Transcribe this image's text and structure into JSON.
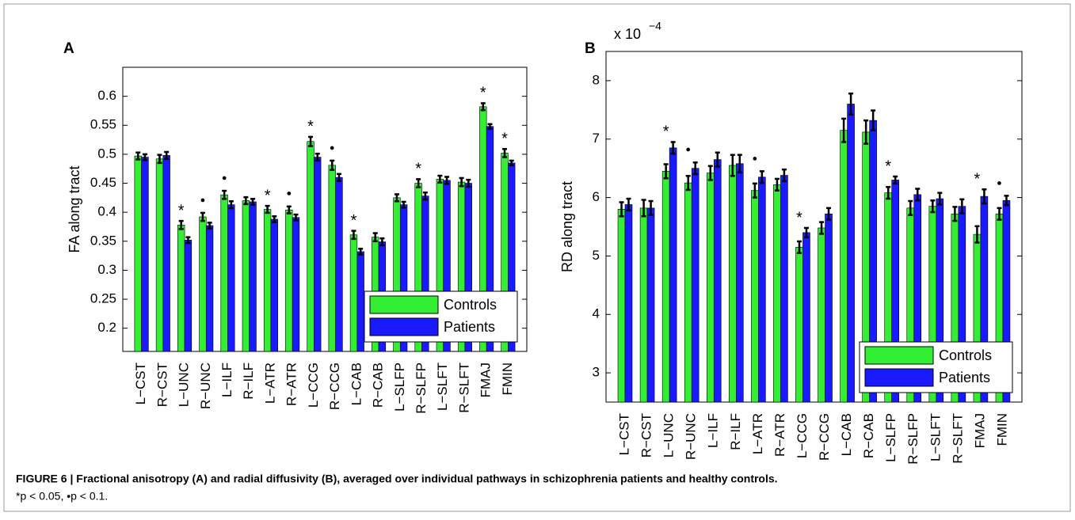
{
  "chart_data": [
    {
      "type": "bar",
      "panel": "A",
      "ylabel": "FA along tract",
      "categories": [
        "L−CST",
        "R−CST",
        "L−UNC",
        "R−UNC",
        "L−ILF",
        "R−ILF",
        "L−ATR",
        "R−ATR",
        "L−CCG",
        "R−CCG",
        "L−CAB",
        "R−CAB",
        "L−SLFP",
        "R−SLFP",
        "L−SLFT",
        "R−SLFT",
        "FMAJ",
        "FMIN"
      ],
      "series": [
        {
          "name": "Controls",
          "color": "#33ee33",
          "values": [
            0.497,
            0.492,
            0.378,
            0.392,
            0.43,
            0.42,
            0.405,
            0.404,
            0.522,
            0.481,
            0.361,
            0.357,
            0.425,
            0.45,
            0.457,
            0.452,
            0.582,
            0.502
          ],
          "errors": [
            0.006,
            0.007,
            0.007,
            0.007,
            0.007,
            0.006,
            0.006,
            0.006,
            0.008,
            0.008,
            0.007,
            0.007,
            0.006,
            0.007,
            0.006,
            0.007,
            0.006,
            0.007
          ]
        },
        {
          "name": "Patients",
          "color": "#1a1aff",
          "values": [
            0.495,
            0.498,
            0.352,
            0.377,
            0.413,
            0.418,
            0.388,
            0.391,
            0.495,
            0.46,
            0.332,
            0.349,
            0.413,
            0.428,
            0.455,
            0.45,
            0.548,
            0.485
          ],
          "errors": [
            0.005,
            0.006,
            0.005,
            0.005,
            0.006,
            0.005,
            0.005,
            0.005,
            0.006,
            0.006,
            0.005,
            0.006,
            0.005,
            0.006,
            0.006,
            0.006,
            0.004,
            0.004
          ]
        }
      ],
      "markers": [
        null,
        null,
        "*",
        "●",
        "●",
        null,
        "*",
        "●",
        "*",
        "●",
        "*",
        null,
        null,
        "*",
        null,
        null,
        "*",
        "*"
      ],
      "ylim": [
        0.16,
        0.65
      ],
      "yticks": [
        0.2,
        0.25,
        0.3,
        0.35,
        0.4,
        0.45,
        0.5,
        0.55,
        0.6
      ],
      "legend": "lower right"
    },
    {
      "type": "bar",
      "panel": "B",
      "ylabel": "RD along tract",
      "scale_label": "x 10",
      "scale_exponent": "−4",
      "categories": [
        "L−CST",
        "R−CST",
        "L−UNC",
        "R−UNC",
        "L−ILF",
        "R−ILF",
        "L−ATR",
        "R−ATR",
        "L−CCG",
        "R−CCG",
        "L−CAB",
        "R−CAB",
        "L−SLFP",
        "R−SLFP",
        "L−SLFT",
        "R−SLFT",
        "FMAJ",
        "FMIN"
      ],
      "series": [
        {
          "name": "Controls",
          "color": "#33ee33",
          "values": [
            5.8,
            5.82,
            6.45,
            6.25,
            6.42,
            6.55,
            6.12,
            6.22,
            5.15,
            5.48,
            7.15,
            7.12,
            6.08,
            5.82,
            5.85,
            5.72,
            5.37,
            5.72
          ],
          "errors": [
            0.12,
            0.14,
            0.12,
            0.12,
            0.12,
            0.18,
            0.12,
            0.1,
            0.1,
            0.1,
            0.2,
            0.2,
            0.1,
            0.12,
            0.1,
            0.12,
            0.14,
            0.1
          ]
        },
        {
          "name": "Patients",
          "color": "#1a1aff",
          "values": [
            5.88,
            5.82,
            6.85,
            6.5,
            6.65,
            6.58,
            6.35,
            6.38,
            5.4,
            5.72,
            7.6,
            7.32,
            6.3,
            6.05,
            5.98,
            5.85,
            6.02,
            5.95
          ],
          "errors": [
            0.1,
            0.12,
            0.1,
            0.1,
            0.12,
            0.15,
            0.1,
            0.1,
            0.08,
            0.1,
            0.18,
            0.17,
            0.06,
            0.1,
            0.1,
            0.12,
            0.12,
            0.08
          ]
        }
      ],
      "markers": [
        null,
        null,
        "*",
        "●",
        null,
        null,
        "●",
        null,
        "*",
        null,
        null,
        null,
        "*",
        null,
        null,
        null,
        "*",
        "●"
      ],
      "ylim": [
        2.5,
        8.5
      ],
      "yticks": [
        3,
        4,
        5,
        6,
        7,
        8
      ],
      "legend": "lower right"
    }
  ],
  "caption": {
    "title": "FIGURE 6 | Fractional anisotropy (A) and radial diffusivity (B), averaged over individual pathways in schizophrenia patients and healthy controls.",
    "note": "*p < 0.05, •p < 0.1."
  }
}
